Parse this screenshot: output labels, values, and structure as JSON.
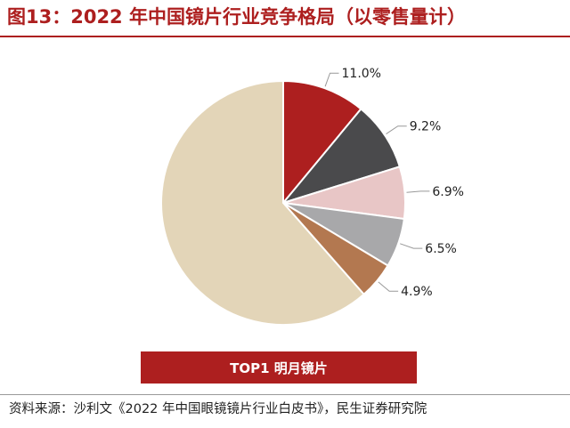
{
  "header": {
    "title": "图13：2022 年中国镜片行业竞争格局（以零售量计）"
  },
  "chart_data": {
    "type": "pie",
    "start_angle_deg": 0,
    "direction": "clockwise",
    "slices": [
      {
        "label": "11.0%",
        "value": 11.0,
        "color": "#ad1f1f"
      },
      {
        "label": "9.2%",
        "value": 9.2,
        "color": "#4a4a4c"
      },
      {
        "label": "6.9%",
        "value": 6.9,
        "color": "#e8c6c6"
      },
      {
        "label": "6.5%",
        "value": 6.5,
        "color": "#a8a8aa"
      },
      {
        "label": "4.9%",
        "value": 4.9,
        "color": "#b37850"
      },
      {
        "label": "",
        "value": 61.5,
        "color": "#e3d5b8"
      }
    ],
    "legend": {
      "entries": [
        "TOP1 明月镜片"
      ],
      "placement": "bottom",
      "color": "#ad1f1f"
    }
  },
  "footer": {
    "source": "资料来源：沙利文《2022 年中国眼镜镜片行业白皮书》，民生证券研究院"
  }
}
